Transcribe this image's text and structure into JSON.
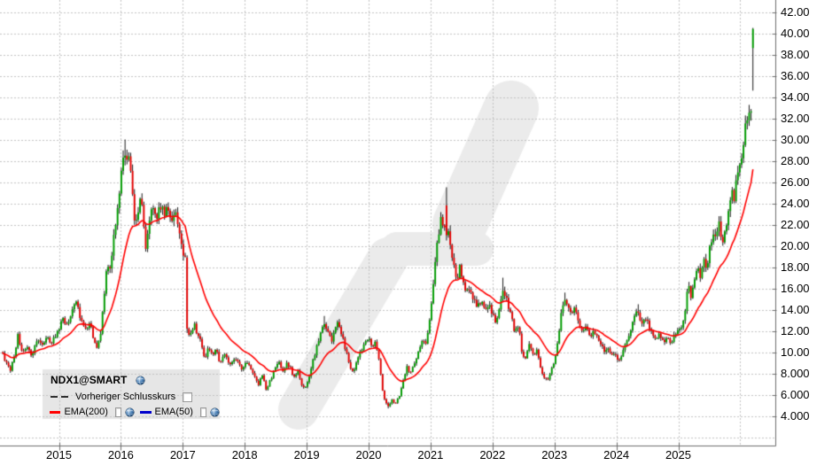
{
  "legend": {
    "symbol": "NDX1@SMART",
    "items": [
      {
        "label": "Vorheriger Schlusskurs",
        "style": "dashed",
        "color": "#2f2f2f",
        "checked": false,
        "visible": false
      },
      {
        "label": "EMA(200)",
        "style": "solid",
        "color": "#ff0000",
        "checked": false,
        "visible": true
      },
      {
        "label": "EMA(50)",
        "style": "solid",
        "color": "#0000cc",
        "checked": false,
        "visible": false
      }
    ]
  },
  "colors": {
    "up": "#009e00",
    "down": "#e60000",
    "wick": "#000000",
    "ema200": "#ff0000",
    "ema50": "#0000cc",
    "grid": "#c3c3c3",
    "axis": "#6e6e6e",
    "watermark": "#ebebeb",
    "legend_bg": "#e6e6e6",
    "text": "#000000"
  },
  "y_axis": {
    "ticks": [
      {
        "value": 42,
        "label": "42.00"
      },
      {
        "value": 40,
        "label": "40.00"
      },
      {
        "value": 38,
        "label": "38.00"
      },
      {
        "value": 36,
        "label": "36.00"
      },
      {
        "value": 34,
        "label": "34.00"
      },
      {
        "value": 32,
        "label": "32.00"
      },
      {
        "value": 30,
        "label": "30.00"
      },
      {
        "value": 28,
        "label": "28.00"
      },
      {
        "value": 26,
        "label": "26.00"
      },
      {
        "value": 24,
        "label": "24.00"
      },
      {
        "value": 22,
        "label": "22.00"
      },
      {
        "value": 20,
        "label": "20.00"
      },
      {
        "value": 18,
        "label": "18.00"
      },
      {
        "value": 16,
        "label": "16.00"
      },
      {
        "value": 14,
        "label": "14.00"
      },
      {
        "value": 12,
        "label": "12.00"
      },
      {
        "value": 10,
        "label": "10.00"
      },
      {
        "value": 8,
        "label": "8.000"
      },
      {
        "value": 6,
        "label": "6.000"
      },
      {
        "value": 4,
        "label": "4.000"
      }
    ],
    "unlabeled_gridline_values": [
      2
    ]
  },
  "x_axis": {
    "ticks": [
      {
        "year": 2015,
        "label": "2015"
      },
      {
        "year": 2016,
        "label": "2016"
      },
      {
        "year": 2017,
        "label": "2017"
      },
      {
        "year": 2018,
        "label": "2018"
      },
      {
        "year": 2019,
        "label": "2019"
      },
      {
        "year": 2020,
        "label": "2020"
      },
      {
        "year": 2021,
        "label": "2021"
      },
      {
        "year": 2022,
        "label": "2022"
      },
      {
        "year": 2023,
        "label": "2023"
      },
      {
        "year": 2024,
        "label": "2024"
      },
      {
        "year": 2025,
        "label": "2025"
      }
    ],
    "unlabeled_gridline_years": [
      2026
    ]
  },
  "chart_data": {
    "type": "candlestick",
    "symbol": "NDX1@SMART",
    "title": "NDX1@SMART",
    "legend_position": "bottom-left",
    "grid": true,
    "y_range": [
      2.4,
      43.1
    ],
    "x_range_years": [
      2014.08,
      2026.22
    ],
    "indicators": [
      {
        "name": "EMA(200)",
        "color": "#ff0000",
        "visible": true
      },
      {
        "name": "EMA(50)",
        "color": "#0000cc",
        "visible": false
      },
      {
        "name": "Vorheriger Schlusskurs",
        "color": "#2f2f2f",
        "visible": false
      }
    ],
    "close_path": [
      [
        2014.08,
        10.0
      ],
      [
        2014.16,
        8.8
      ],
      [
        2014.22,
        8.3
      ],
      [
        2014.28,
        9.7
      ],
      [
        2014.34,
        11.6
      ],
      [
        2014.4,
        10.0
      ],
      [
        2014.48,
        10.4
      ],
      [
        2014.56,
        9.6
      ],
      [
        2014.63,
        11.2
      ],
      [
        2014.72,
        10.7
      ],
      [
        2014.8,
        11.4
      ],
      [
        2014.88,
        10.9
      ],
      [
        2014.97,
        11.9
      ],
      [
        2015.06,
        13.1
      ],
      [
        2015.13,
        12.5
      ],
      [
        2015.22,
        14.2
      ],
      [
        2015.28,
        14.6
      ],
      [
        2015.36,
        12.9
      ],
      [
        2015.44,
        12.0
      ],
      [
        2015.5,
        12.8
      ],
      [
        2015.56,
        11.2
      ],
      [
        2015.62,
        10.5
      ],
      [
        2015.68,
        12.0
      ],
      [
        2015.73,
        15.5
      ],
      [
        2015.78,
        18.4
      ],
      [
        2015.83,
        17.7
      ],
      [
        2015.88,
        20.7
      ],
      [
        2015.93,
        22.8
      ],
      [
        2015.98,
        25.4
      ],
      [
        2016.02,
        27.8
      ],
      [
        2016.06,
        28.9
      ],
      [
        2016.1,
        27.8
      ],
      [
        2016.14,
        28.4
      ],
      [
        2016.18,
        25.4
      ],
      [
        2016.23,
        21.5
      ],
      [
        2016.28,
        23.3
      ],
      [
        2016.32,
        25.2
      ],
      [
        2016.37,
        21.7
      ],
      [
        2016.4,
        20.0
      ],
      [
        2016.46,
        22.5
      ],
      [
        2016.52,
        23.5
      ],
      [
        2016.58,
        22.5
      ],
      [
        2016.64,
        23.9
      ],
      [
        2016.7,
        22.9
      ],
      [
        2016.76,
        23.7
      ],
      [
        2016.82,
        22.6
      ],
      [
        2016.88,
        23.2
      ],
      [
        2016.94,
        21.8
      ],
      [
        2017.0,
        19.6
      ],
      [
        2017.05,
        18.8
      ],
      [
        2017.065,
        12.2
      ],
      [
        2017.12,
        11.4
      ],
      [
        2017.18,
        12.6
      ],
      [
        2017.24,
        11.7
      ],
      [
        2017.3,
        10.8
      ],
      [
        2017.36,
        9.3
      ],
      [
        2017.42,
        10.5
      ],
      [
        2017.48,
        9.6
      ],
      [
        2017.54,
        10.4
      ],
      [
        2017.6,
        8.9
      ],
      [
        2017.66,
        10.0
      ],
      [
        2017.72,
        9.2
      ],
      [
        2017.78,
        8.6
      ],
      [
        2017.84,
        9.6
      ],
      [
        2017.9,
        9.0
      ],
      [
        2017.96,
        8.3
      ],
      [
        2018.02,
        9.3
      ],
      [
        2018.08,
        8.5
      ],
      [
        2018.15,
        7.8
      ],
      [
        2018.22,
        6.9
      ],
      [
        2018.28,
        8.0
      ],
      [
        2018.35,
        6.4
      ],
      [
        2018.42,
        7.5
      ],
      [
        2018.5,
        8.5
      ],
      [
        2018.56,
        9.0
      ],
      [
        2018.62,
        8.2
      ],
      [
        2018.68,
        9.1
      ],
      [
        2018.74,
        8.4
      ],
      [
        2018.8,
        7.6
      ],
      [
        2018.86,
        8.3
      ],
      [
        2018.92,
        6.9
      ],
      [
        2018.98,
        6.6
      ],
      [
        2019.04,
        7.7
      ],
      [
        2019.1,
        9.1
      ],
      [
        2019.16,
        10.4
      ],
      [
        2019.22,
        11.8
      ],
      [
        2019.28,
        12.9
      ],
      [
        2019.34,
        11.9
      ],
      [
        2019.4,
        11.0
      ],
      [
        2019.46,
        12.2
      ],
      [
        2019.52,
        12.8
      ],
      [
        2019.58,
        11.3
      ],
      [
        2019.64,
        10.0
      ],
      [
        2019.7,
        8.6
      ],
      [
        2019.76,
        8.0
      ],
      [
        2019.82,
        9.3
      ],
      [
        2019.88,
        10.1
      ],
      [
        2019.94,
        10.8
      ],
      [
        2020.0,
        11.2
      ],
      [
        2020.06,
        10.6
      ],
      [
        2020.12,
        10.9
      ],
      [
        2020.17,
        9.2
      ],
      [
        2020.22,
        6.6
      ],
      [
        2020.27,
        5.2
      ],
      [
        2020.33,
        4.9
      ],
      [
        2020.38,
        5.6
      ],
      [
        2020.43,
        5.1
      ],
      [
        2020.5,
        5.9
      ],
      [
        2020.56,
        7.4
      ],
      [
        2020.62,
        8.6
      ],
      [
        2020.68,
        8.0
      ],
      [
        2020.74,
        8.9
      ],
      [
        2020.8,
        10.0
      ],
      [
        2020.86,
        11.1
      ],
      [
        2020.92,
        10.8
      ],
      [
        2020.97,
        12.5
      ],
      [
        2021.02,
        14.7
      ],
      [
        2021.07,
        17.9
      ],
      [
        2021.12,
        20.8
      ],
      [
        2021.17,
        22.6
      ],
      [
        2021.21,
        21.4
      ],
      [
        2021.25,
        22.4
      ],
      [
        2021.29,
        21.0
      ],
      [
        2021.33,
        19.4
      ],
      [
        2021.38,
        18.1
      ],
      [
        2021.43,
        16.6
      ],
      [
        2021.47,
        18.0
      ],
      [
        2021.52,
        17.0
      ],
      [
        2021.58,
        15.6
      ],
      [
        2021.64,
        16.0
      ],
      [
        2021.7,
        14.9
      ],
      [
        2021.76,
        14.2
      ],
      [
        2021.82,
        15.0
      ],
      [
        2021.88,
        13.9
      ],
      [
        2021.94,
        14.6
      ],
      [
        2022.0,
        13.4
      ],
      [
        2022.06,
        12.8
      ],
      [
        2022.12,
        14.3
      ],
      [
        2022.18,
        15.9
      ],
      [
        2022.24,
        14.6
      ],
      [
        2022.3,
        13.4
      ],
      [
        2022.36,
        11.9
      ],
      [
        2022.42,
        12.5
      ],
      [
        2022.48,
        9.8
      ],
      [
        2022.54,
        9.4
      ],
      [
        2022.6,
        10.9
      ],
      [
        2022.66,
        9.6
      ],
      [
        2022.72,
        10.1
      ],
      [
        2022.78,
        8.4
      ],
      [
        2022.84,
        7.6
      ],
      [
        2022.9,
        7.3
      ],
      [
        2022.95,
        8.5
      ],
      [
        2023.0,
        9.2
      ],
      [
        2023.06,
        11.2
      ],
      [
        2023.12,
        13.9
      ],
      [
        2023.17,
        15.0
      ],
      [
        2023.23,
        13.9
      ],
      [
        2023.28,
        13.3
      ],
      [
        2023.33,
        14.5
      ],
      [
        2023.39,
        12.8
      ],
      [
        2023.45,
        11.9
      ],
      [
        2023.51,
        12.6
      ],
      [
        2023.57,
        11.4
      ],
      [
        2023.63,
        12.0
      ],
      [
        2023.69,
        11.3
      ],
      [
        2023.75,
        10.7
      ],
      [
        2023.81,
        9.9
      ],
      [
        2023.87,
        10.4
      ],
      [
        2023.93,
        9.7
      ],
      [
        2024.0,
        9.6
      ],
      [
        2024.05,
        9.1
      ],
      [
        2024.11,
        10.2
      ],
      [
        2024.17,
        11.0
      ],
      [
        2024.23,
        12.2
      ],
      [
        2024.29,
        13.2
      ],
      [
        2024.34,
        13.8
      ],
      [
        2024.4,
        12.5
      ],
      [
        2024.46,
        13.2
      ],
      [
        2024.52,
        12.7
      ],
      [
        2024.58,
        11.6
      ],
      [
        2024.64,
        11.0
      ],
      [
        2024.7,
        11.7
      ],
      [
        2024.76,
        10.9
      ],
      [
        2024.82,
        11.5
      ],
      [
        2024.88,
        10.9
      ],
      [
        2024.94,
        11.6
      ],
      [
        2025.0,
        12.1
      ],
      [
        2025.06,
        12.5
      ],
      [
        2025.11,
        14.0
      ],
      [
        2025.16,
        16.6
      ],
      [
        2025.21,
        15.2
      ],
      [
        2025.26,
        16.5
      ],
      [
        2025.31,
        17.8
      ],
      [
        2025.36,
        16.9
      ],
      [
        2025.41,
        18.6
      ],
      [
        2025.46,
        18.0
      ],
      [
        2025.51,
        19.8
      ],
      [
        2025.56,
        21.0
      ],
      [
        2025.61,
        20.4
      ],
      [
        2025.66,
        22.4
      ],
      [
        2025.71,
        19.8
      ],
      [
        2025.76,
        21.5
      ],
      [
        2025.81,
        23.6
      ],
      [
        2025.86,
        25.2
      ],
      [
        2025.9,
        24.6
      ],
      [
        2025.94,
        26.0
      ],
      [
        2025.98,
        27.5
      ],
      [
        2026.03,
        28.8
      ],
      [
        2026.07,
        30.4
      ],
      [
        2026.1,
        31.8
      ],
      [
        2026.13,
        33.0
      ],
      [
        2026.16,
        33.2
      ],
      [
        2026.19,
        32.6
      ],
      [
        2026.22,
        40.4
      ]
    ],
    "candle_overrides": [
      {
        "t": 2016.07,
        "h": 30.0
      },
      {
        "t": 2017.06,
        "o": 18.9,
        "c": 12.2,
        "h": 19.1,
        "l": 11.8
      },
      {
        "t": 2019.29,
        "h": 13.4
      },
      {
        "t": 2020.33,
        "l": 4.7
      },
      {
        "t": 2021.26,
        "o": 23.8,
        "c": 21.0,
        "h": 25.5,
        "l": 20.5
      },
      {
        "t": 2022.17,
        "h": 17.0
      },
      {
        "t": 2023.17,
        "h": 15.6
      },
      {
        "t": 2024.34,
        "h": 14.5
      },
      {
        "t": 2026.22,
        "o": 38.6,
        "c": 40.4,
        "h": 40.5,
        "l": 34.6
      }
    ],
    "watermark": {
      "name": "broker-logo-watermark",
      "color": "#ebebeb"
    }
  }
}
